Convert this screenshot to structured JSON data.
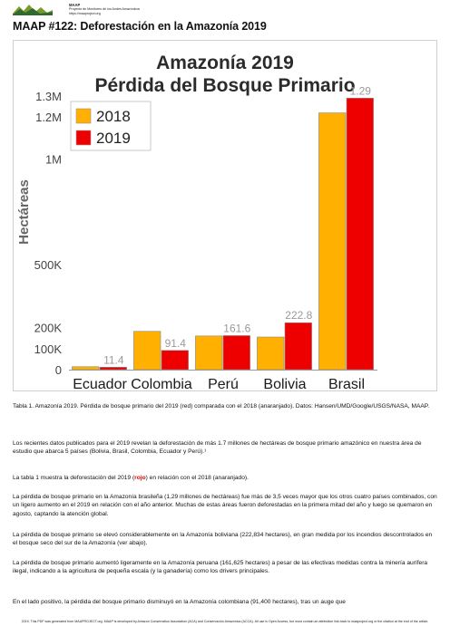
{
  "header": {
    "logo_text": "MAAP",
    "line1": "MAAP",
    "line2": "Proyecto de Monitoreo de los Andes Amazónicos",
    "line3": "https://maaproject.org"
  },
  "doc_title": "MAAP #122: Deforestación en la Amazonía 2019",
  "colors": {
    "series_2018": "#ffb000",
    "series_2019": "#ee0000",
    "label_gray": "#9a9a9a"
  },
  "chart_data": {
    "type": "bar",
    "title": "Amazonía 2019",
    "subtitle": "Pérdida del Bosque Primario",
    "ylabel": "Hectáreas",
    "categories": [
      "Ecuador",
      "Colombia",
      "Perú",
      "Bolivia",
      "Brasil"
    ],
    "series": [
      {
        "name": "2018",
        "values": [
          14000,
          182000,
          160000,
          155000,
          1220000
        ]
      },
      {
        "name": "2019",
        "values": [
          11400,
          91400,
          161600,
          222800,
          1290000
        ]
      }
    ],
    "data_labels": [
      "11.4",
      "91.4",
      "161.6",
      "222.8",
      "1.29"
    ],
    "yticks": [
      {
        "value": 0,
        "label": "0"
      },
      {
        "value": 100000,
        "label": "100K"
      },
      {
        "value": 200000,
        "label": "200K"
      },
      {
        "value": 500000,
        "label": "500K"
      },
      {
        "value": 1000000,
        "label": "1M"
      },
      {
        "value": 1200000,
        "label": "1.2M"
      },
      {
        "value": 1300000,
        "label": "1.3M"
      }
    ],
    "ylim": [
      0,
      1300000
    ],
    "legend_position": "top-left",
    "grid": false
  },
  "caption": "Tabla 1. Amazonía 2019. Pérdida de bosque primario del 2019 (red) comparada con el 2018 (anaranjado). Datos: Hansen/UMD/Google/USGS/NASA, MAAP.",
  "paragraphs": {
    "p1": "Los recientes datos publicados para el 2019 revelan la deforestación de más 1.7 millones de hectáreas de bosque primario amazónico en nuestra área de estudio que abarca 5 países (Bolivia, Brasil, Colombia, Ecuador y Perú).¹",
    "p2_a": "La tabla 1 muestra la deforestación del 2019 (",
    "p2_red": "rojo",
    "p2_b": ") en relación con el 2018 (anaranjado).",
    "p3": "La pérdida de bosque primario en la Amazonía brasileña (1,29 millones de hectáreas) fue más de 3,5 veces mayor que los otros cuatro países combinados, con un ligero aumento en el 2019 en relación con el año anterior. Muchas de estas áreas fueron deforestadas en la primera mitad del año y luego se quemaron en agosto, captando la atención global.",
    "p4": "La pérdida de bosque primario se elevó considerablemente en la Amazonía boliviana (222,834 hectares), en gran medida por los incendios descontrolados en el bosque seco del sur de la Amazonía (ver abajo).",
    "p5": "La pérdida de bosque primario aumentó ligeramente en la Amazonía peruana (161,625 hectares) a pesar de las efectivas medidas contra la minería aurífera ilegal, indicando a la agricultura de pequeña escala (y la ganadería) como los drivers principales.",
    "p6": "En el lado positivo, la pérdida del bosque primario disminuyó en la Amazonía colombiana (91,400 hectares), tras un auge que"
  },
  "footer": "2019. This PDF was generated from MAAPROJECT.org. MAAP is developed by Amazon Conservation Association (ACA) and Conservación Amazónica (ACCA). All use is Open Access, but must contain an attribution link back to maaproject.org or the citation at the end of the article."
}
